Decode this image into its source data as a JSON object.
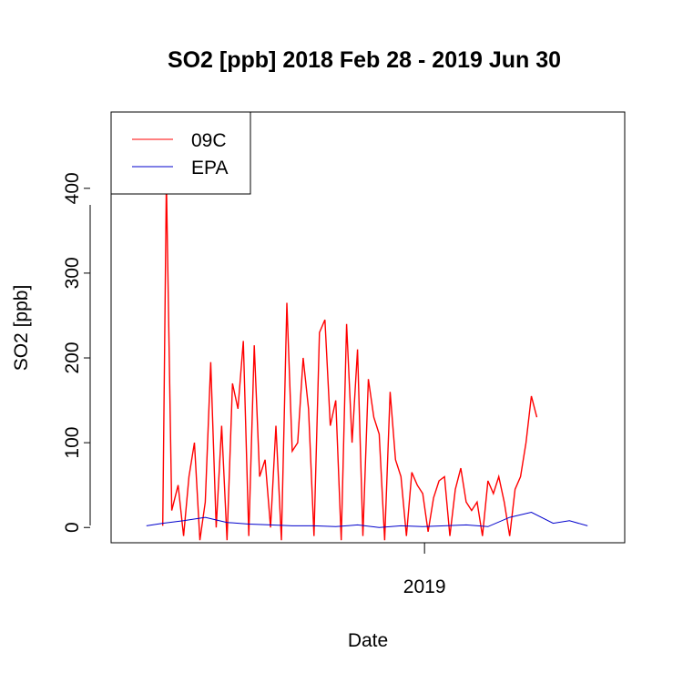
{
  "chart_data": {
    "type": "line",
    "title": "SO2 [ppb] 2018 Feb 28 - 2019 Jun 30",
    "xlabel": "Date",
    "ylabel": "SO2 [ppb]",
    "x_ticks": [
      {
        "label": "2019",
        "value": "2019-01-01"
      }
    ],
    "y_ticks": [
      0,
      100,
      200,
      300,
      400
    ],
    "ylim": [
      -18,
      490
    ],
    "xlim": [
      "2018-01-20",
      "2019-08-10"
    ],
    "grid": false,
    "legend": {
      "position": "top-left",
      "entries": [
        "09C",
        "EPA"
      ]
    },
    "colors": {
      "09C": "#ff0000",
      "EPA": "#0000cc"
    },
    "series": [
      {
        "name": "09C",
        "color": "#ff0000",
        "x": [
          "2018-03-18",
          "2018-03-22",
          "2018-03-28",
          "2018-04-04",
          "2018-04-10",
          "2018-04-16",
          "2018-04-22",
          "2018-04-28",
          "2018-05-04",
          "2018-05-10",
          "2018-05-16",
          "2018-05-22",
          "2018-05-28",
          "2018-06-03",
          "2018-06-09",
          "2018-06-15",
          "2018-06-21",
          "2018-06-27",
          "2018-07-03",
          "2018-07-09",
          "2018-07-15",
          "2018-07-21",
          "2018-07-27",
          "2018-08-02",
          "2018-08-08",
          "2018-08-14",
          "2018-08-20",
          "2018-08-26",
          "2018-09-01",
          "2018-09-07",
          "2018-09-13",
          "2018-09-19",
          "2018-09-25",
          "2018-10-01",
          "2018-10-07",
          "2018-10-13",
          "2018-10-19",
          "2018-10-25",
          "2018-10-31",
          "2018-11-06",
          "2018-11-12",
          "2018-11-18",
          "2018-11-24",
          "2018-11-30",
          "2018-12-06",
          "2018-12-12",
          "2018-12-18",
          "2018-12-24",
          "2018-12-30",
          "2019-01-05",
          "2019-01-11",
          "2019-01-17",
          "2019-01-23",
          "2019-01-29",
          "2019-02-04",
          "2019-02-10",
          "2019-02-16",
          "2019-02-22",
          "2019-02-28",
          "2019-03-06",
          "2019-03-12",
          "2019-03-18",
          "2019-03-24",
          "2019-03-30",
          "2019-04-05",
          "2019-04-11",
          "2019-04-17",
          "2019-04-23",
          "2019-04-29",
          "2019-05-05"
        ],
        "values": [
          2,
          410,
          20,
          50,
          -10,
          60,
          100,
          -15,
          30,
          195,
          0,
          120,
          -15,
          170,
          140,
          220,
          -10,
          215,
          60,
          80,
          0,
          120,
          -15,
          265,
          90,
          100,
          200,
          140,
          -10,
          230,
          245,
          120,
          150,
          -15,
          240,
          100,
          210,
          -10,
          175,
          130,
          110,
          -15,
          160,
          80,
          60,
          -10,
          65,
          50,
          40,
          -5,
          35,
          55,
          60,
          -10,
          45,
          70,
          30,
          20,
          30,
          -10,
          55,
          40,
          60,
          30,
          -10,
          45,
          60,
          100,
          155,
          130
        ]
      },
      {
        "name": "EPA",
        "color": "#0000cc",
        "x": [
          "2018-02-28",
          "2018-03-18",
          "2018-04-10",
          "2018-05-04",
          "2018-05-28",
          "2018-06-21",
          "2018-07-15",
          "2018-08-08",
          "2018-09-01",
          "2018-09-25",
          "2018-10-19",
          "2018-11-12",
          "2018-12-06",
          "2018-12-30",
          "2019-01-23",
          "2019-02-16",
          "2019-03-12",
          "2019-04-05",
          "2019-04-29",
          "2019-05-23",
          "2019-06-10",
          "2019-06-30"
        ],
        "values": [
          2,
          5,
          8,
          12,
          6,
          4,
          3,
          2,
          2,
          1,
          3,
          0,
          2,
          1,
          2,
          3,
          1,
          12,
          18,
          5,
          8,
          2
        ]
      }
    ]
  }
}
